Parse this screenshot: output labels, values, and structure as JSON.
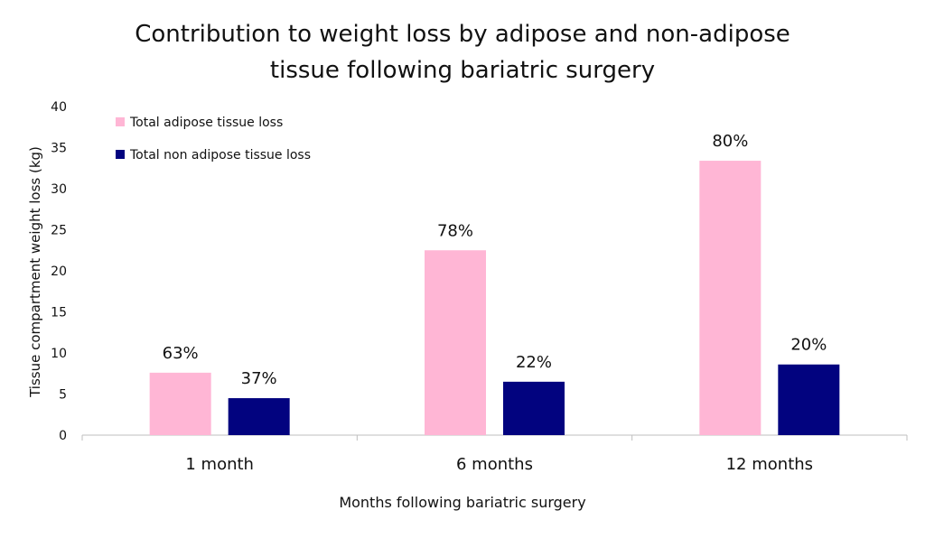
{
  "chart_data": {
    "type": "bar",
    "title_lines": [
      "Contribution to weight loss by adipose and non-adipose",
      "tissue following bariatric surgery"
    ],
    "xlabel": "Months following bariatric surgery",
    "ylabel": "Tissue compartment weight loss (kg)",
    "categories": [
      "1 month",
      "6 months",
      "12 months"
    ],
    "ylim": [
      0,
      40
    ],
    "yticks": [
      0,
      5,
      10,
      15,
      20,
      25,
      30,
      35,
      40
    ],
    "grid": false,
    "legend_position": "top-left",
    "series": [
      {
        "name": "Total adipose tissue loss",
        "color": "#ffb6d5",
        "values": [
          7.6,
          22.5,
          33.4
        ],
        "labels": [
          "63%",
          "78%",
          "80%"
        ]
      },
      {
        "name": "Total non adipose tissue loss",
        "color": "#02037f",
        "values": [
          4.5,
          6.5,
          8.6
        ],
        "labels": [
          "37%",
          "22%",
          "20%"
        ]
      }
    ]
  }
}
